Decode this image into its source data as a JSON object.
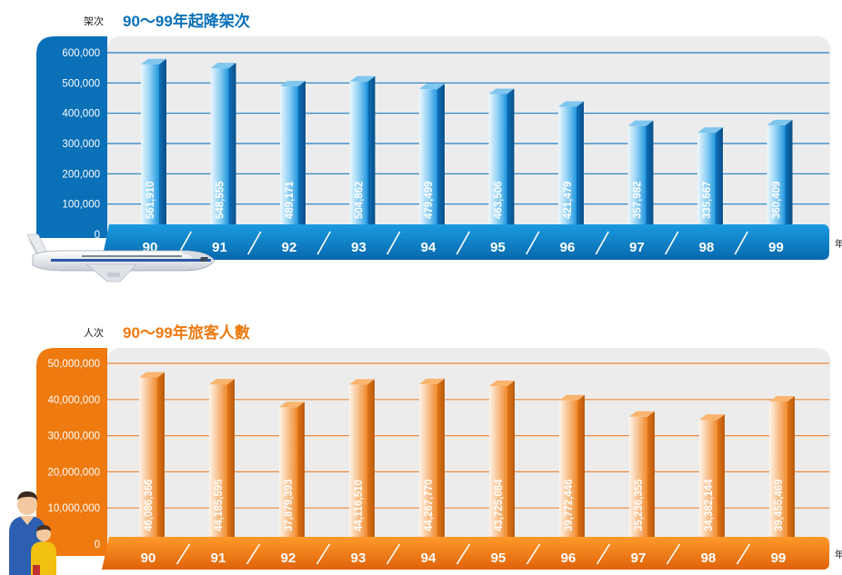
{
  "chart_data": [
    {
      "type": "bar",
      "unit_label": "架次",
      "title": "90～99年起降架次",
      "xlabel": "年",
      "categories": [
        "90",
        "91",
        "92",
        "93",
        "94",
        "95",
        "96",
        "97",
        "98",
        "99"
      ],
      "value_labels": [
        "561,910",
        "548,555",
        "489,171",
        "504,862",
        "479,499",
        "463,506",
        "421,479",
        "357,982",
        "335,667",
        "360,409"
      ],
      "values": [
        561910,
        548555,
        489171,
        504862,
        479499,
        463506,
        421479,
        357982,
        335667,
        360409
      ],
      "ylim": [
        0,
        600000
      ],
      "ticks": [
        0,
        100000,
        200000,
        300000,
        400000,
        500000,
        600000
      ],
      "tick_labels": [
        "0",
        "100,000",
        "200,000",
        "300,000",
        "400,000",
        "500,000",
        "600,000"
      ],
      "colors": {
        "accent": "#0a70b8",
        "bar_light": "#e6f4fc",
        "bar_dark": "#1d8fd6",
        "grid": "#1f7ec2",
        "band": "#0a80cc"
      }
    },
    {
      "type": "bar",
      "unit_label": "人次",
      "title": "90～99年旅客人數",
      "xlabel": "年",
      "categories": [
        "90",
        "91",
        "92",
        "93",
        "94",
        "95",
        "96",
        "97",
        "98",
        "99"
      ],
      "value_labels": [
        "46,086,366",
        "44,185,595",
        "37,879,393",
        "44,116,510",
        "44,267,770",
        "43,725,084",
        "39,772,446",
        "35,236,355",
        "34,382,144",
        "39,455,469"
      ],
      "values": [
        46086366,
        44185595,
        37879393,
        44116510,
        44267770,
        43725084,
        39772446,
        35236355,
        34382144,
        39455469
      ],
      "ylim": [
        0,
        50000000
      ],
      "ticks": [
        0,
        10000000,
        20000000,
        30000000,
        40000000,
        50000000
      ],
      "tick_labels": [
        "0",
        "10,000,000",
        "20,000,000",
        "30,000,000",
        "40,000,000",
        "50,000,000"
      ],
      "colors": {
        "accent": "#ee7a10",
        "bar_light": "#fdeede",
        "bar_dark": "#f08a2c",
        "grid": "#ef8a3a",
        "band": "#f07a10"
      }
    }
  ],
  "icons": {
    "top": "airplane-icon",
    "bottom": "people-icon"
  }
}
